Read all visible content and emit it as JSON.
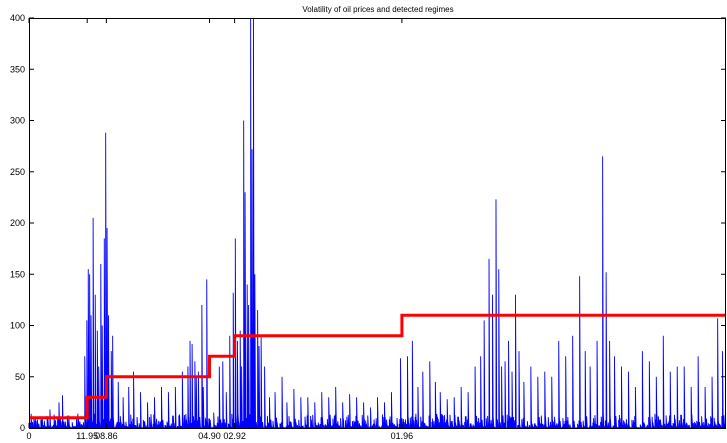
{
  "chart_data": {
    "type": "line",
    "title": "Volatility of oil prices and detected regimes",
    "xlabel": "",
    "ylabel": "",
    "xlim": [
      0,
      2000
    ],
    "ylim": [
      0,
      400
    ],
    "grid": false,
    "legend": "none",
    "y_ticks": [
      0,
      50,
      100,
      150,
      200,
      250,
      300,
      350,
      400
    ],
    "x_ticks": [
      {
        "x": 0,
        "label": "0"
      },
      {
        "x": 167,
        "label": "11.95"
      },
      {
        "x": 222,
        "label": "08.86"
      },
      {
        "x": 518,
        "label": "04.90"
      },
      {
        "x": 590,
        "label": "02.92"
      },
      {
        "x": 1070,
        "label": "01.96"
      }
    ],
    "series": [
      {
        "role": "volatility",
        "color": "#0000ff",
        "baseline_max": 14,
        "spikes": [
          [
            35,
            8
          ],
          [
            60,
            18
          ],
          [
            85,
            25
          ],
          [
            95,
            32
          ],
          [
            110,
            12
          ],
          [
            140,
            14
          ],
          [
            160,
            70
          ],
          [
            165,
            105
          ],
          [
            170,
            155
          ],
          [
            173,
            150
          ],
          [
            178,
            110
          ],
          [
            183,
            205
          ],
          [
            190,
            130
          ],
          [
            195,
            95
          ],
          [
            200,
            60
          ],
          [
            205,
            160
          ],
          [
            210,
            100
          ],
          [
            215,
            185
          ],
          [
            220,
            288
          ],
          [
            224,
            195
          ],
          [
            228,
            110
          ],
          [
            235,
            75
          ],
          [
            240,
            90
          ],
          [
            255,
            45
          ],
          [
            270,
            30
          ],
          [
            285,
            40
          ],
          [
            300,
            55
          ],
          [
            320,
            35
          ],
          [
            340,
            25
          ],
          [
            360,
            30
          ],
          [
            380,
            40
          ],
          [
            400,
            35
          ],
          [
            420,
            40
          ],
          [
            440,
            55
          ],
          [
            455,
            60
          ],
          [
            462,
            85
          ],
          [
            468,
            82
          ],
          [
            475,
            65
          ],
          [
            480,
            50
          ],
          [
            485,
            55
          ],
          [
            495,
            120
          ],
          [
            500,
            40
          ],
          [
            510,
            145
          ],
          [
            530,
            15
          ],
          [
            545,
            60
          ],
          [
            555,
            65
          ],
          [
            565,
            35
          ],
          [
            575,
            90
          ],
          [
            585,
            132
          ],
          [
            592,
            185
          ],
          [
            598,
            85
          ],
          [
            605,
            95
          ],
          [
            610,
            60
          ],
          [
            615,
            300
          ],
          [
            620,
            230
          ],
          [
            625,
            140
          ],
          [
            630,
            120
          ],
          [
            635,
            400
          ],
          [
            640,
            272
          ],
          [
            643,
            420
          ],
          [
            648,
            150
          ],
          [
            655,
            115
          ],
          [
            660,
            80
          ],
          [
            665,
            90
          ],
          [
            675,
            60
          ],
          [
            690,
            30
          ],
          [
            705,
            35
          ],
          [
            725,
            50
          ],
          [
            740,
            25
          ],
          [
            760,
            38
          ],
          [
            780,
            30
          ],
          [
            800,
            30
          ],
          [
            820,
            25
          ],
          [
            840,
            35
          ],
          [
            860,
            30
          ],
          [
            880,
            40
          ],
          [
            900,
            25
          ],
          [
            920,
            33
          ],
          [
            940,
            30
          ],
          [
            960,
            25
          ],
          [
            980,
            20
          ],
          [
            1000,
            30
          ],
          [
            1020,
            25
          ],
          [
            1040,
            35
          ],
          [
            1065,
            68
          ],
          [
            1085,
            70
          ],
          [
            1100,
            85
          ],
          [
            1115,
            40
          ],
          [
            1130,
            55
          ],
          [
            1150,
            65
          ],
          [
            1165,
            45
          ],
          [
            1180,
            35
          ],
          [
            1200,
            28
          ],
          [
            1220,
            30
          ],
          [
            1240,
            40
          ],
          [
            1260,
            35
          ],
          [
            1280,
            60
          ],
          [
            1295,
            70
          ],
          [
            1305,
            105
          ],
          [
            1320,
            165
          ],
          [
            1330,
            130
          ],
          [
            1340,
            223
          ],
          [
            1348,
            155
          ],
          [
            1355,
            60
          ],
          [
            1365,
            65
          ],
          [
            1375,
            85
          ],
          [
            1385,
            55
          ],
          [
            1395,
            130
          ],
          [
            1405,
            75
          ],
          [
            1420,
            45
          ],
          [
            1440,
            60
          ],
          [
            1460,
            50
          ],
          [
            1480,
            55
          ],
          [
            1500,
            50
          ],
          [
            1520,
            85
          ],
          [
            1540,
            70
          ],
          [
            1560,
            90
          ],
          [
            1580,
            148
          ],
          [
            1595,
            75
          ],
          [
            1610,
            60
          ],
          [
            1630,
            85
          ],
          [
            1645,
            265
          ],
          [
            1655,
            152
          ],
          [
            1665,
            85
          ],
          [
            1680,
            70
          ],
          [
            1700,
            60
          ],
          [
            1720,
            55
          ],
          [
            1740,
            40
          ],
          [
            1760,
            75
          ],
          [
            1780,
            65
          ],
          [
            1800,
            50
          ],
          [
            1820,
            90
          ],
          [
            1840,
            55
          ],
          [
            1860,
            60
          ],
          [
            1880,
            60
          ],
          [
            1900,
            40
          ],
          [
            1920,
            70
          ],
          [
            1940,
            40
          ],
          [
            1960,
            50
          ],
          [
            1975,
            107
          ],
          [
            1990,
            75
          ]
        ]
      },
      {
        "role": "detected-regimes",
        "color": "#ff0000",
        "x": [
          0,
          167,
          167,
          222,
          222,
          518,
          518,
          590,
          590,
          1070,
          1070,
          2000
        ],
        "y": [
          10,
          10,
          30,
          30,
          50,
          50,
          70,
          70,
          90,
          90,
          110,
          110
        ]
      }
    ]
  }
}
